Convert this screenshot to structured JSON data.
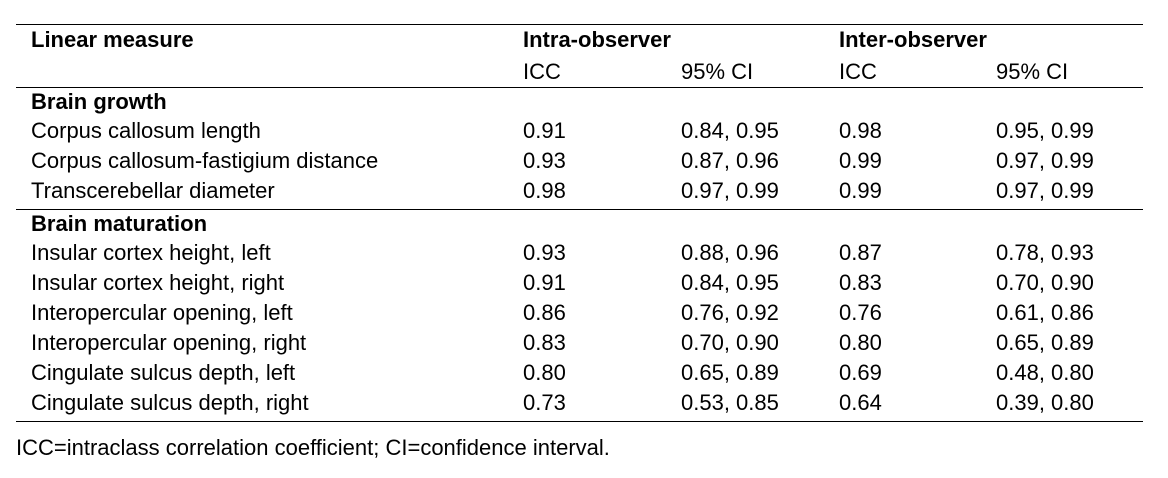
{
  "table": {
    "header": {
      "measure_label": "Linear measure",
      "intra_label": "Intra-observer",
      "inter_label": "Inter-observer",
      "icc_label": "ICC",
      "ci_label": "95% CI"
    },
    "sections": [
      {
        "title": "Brain growth",
        "rows": [
          {
            "measure": "Corpus callosum length",
            "intra_icc": "0.91",
            "intra_ci": "0.84, 0.95",
            "inter_icc": "0.98",
            "inter_ci": "0.95, 0.99"
          },
          {
            "measure": "Corpus callosum-fastigium distance",
            "intra_icc": "0.93",
            "intra_ci": "0.87, 0.96",
            "inter_icc": "0.99",
            "inter_ci": "0.97, 0.99"
          },
          {
            "measure": "Transcerebellar diameter",
            "intra_icc": "0.98",
            "intra_ci": "0.97, 0.99",
            "inter_icc": "0.99",
            "inter_ci": "0.97, 0.99"
          }
        ]
      },
      {
        "title": "Brain maturation",
        "rows": [
          {
            "measure": "Insular cortex height, left",
            "intra_icc": "0.93",
            "intra_ci": "0.88, 0.96",
            "inter_icc": "0.87",
            "inter_ci": "0.78, 0.93"
          },
          {
            "measure": "Insular cortex height, right",
            "intra_icc": "0.91",
            "intra_ci": "0.84, 0.95",
            "inter_icc": "0.83",
            "inter_ci": "0.70, 0.90"
          },
          {
            "measure": "Interopercular opening, left",
            "intra_icc": "0.86",
            "intra_ci": "0.76, 0.92",
            "inter_icc": "0.76",
            "inter_ci": "0.61, 0.86"
          },
          {
            "measure": "Interopercular opening, right",
            "intra_icc": "0.83",
            "intra_ci": "0.70, 0.90",
            "inter_icc": "0.80",
            "inter_ci": "0.65, 0.89"
          },
          {
            "measure": "Cingulate sulcus depth, left",
            "intra_icc": "0.80",
            "intra_ci": "0.65, 0.89",
            "inter_icc": "0.69",
            "inter_ci": "0.48, 0.80"
          },
          {
            "measure": "Cingulate sulcus depth, right",
            "intra_icc": "0.73",
            "intra_ci": "0.53, 0.85",
            "inter_icc": "0.64",
            "inter_ci": "0.39, 0.80"
          }
        ]
      }
    ]
  },
  "footnote": "ICC=intraclass correlation coefficient; CI=confidence interval."
}
